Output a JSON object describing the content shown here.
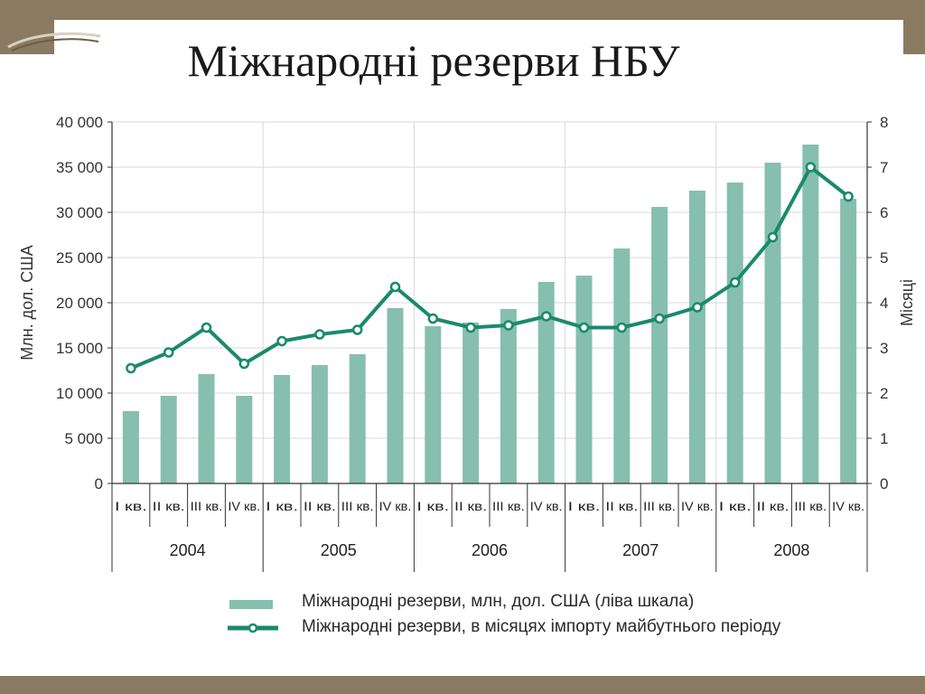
{
  "slide": {
    "title": "Міжнародні резерви НБУ"
  },
  "colors": {
    "frame": "#8a7a62",
    "bar": "#86bfae",
    "line": "#1a8a6a",
    "marker_fill": "#ffffff",
    "grid": "#d8d8d8",
    "axis": "#333333"
  },
  "chart_data": {
    "type": "bar",
    "combined_with": "line",
    "categories": [
      "I кв.",
      "II кв.",
      "III кв.",
      "IV кв.",
      "I кв.",
      "II кв.",
      "III кв.",
      "IV кв.",
      "I кв.",
      "II кв.",
      "III кв.",
      "IV кв.",
      "I кв.",
      "II кв.",
      "III кв.",
      "IV кв.",
      "I кв.",
      "II кв.",
      "III кв.",
      "IV кв."
    ],
    "groups": [
      {
        "label": "2004",
        "span": 4
      },
      {
        "label": "2005",
        "span": 4
      },
      {
        "label": "2006",
        "span": 4
      },
      {
        "label": "2007",
        "span": 4
      },
      {
        "label": "2008",
        "span": 4
      }
    ],
    "series": [
      {
        "name": "Міжнародні резерви, млн, дол. США (ліва шкала)",
        "type": "bar",
        "axis": "left",
        "values": [
          8000,
          9700,
          12100,
          9700,
          12000,
          13100,
          14300,
          19400,
          17400,
          17800,
          19300,
          22300,
          23000,
          26000,
          30600,
          32400,
          33300,
          35500,
          37500,
          31500
        ]
      },
      {
        "name": "Міжнародні резерви, в місяцях імпорту майбутнього періоду",
        "type": "line",
        "axis": "right",
        "values": [
          2.55,
          2.9,
          3.45,
          2.65,
          3.15,
          3.3,
          3.4,
          4.35,
          3.65,
          3.45,
          3.5,
          3.7,
          3.45,
          3.45,
          3.65,
          3.9,
          4.45,
          5.45,
          7.0,
          6.35
        ]
      }
    ],
    "left_axis": {
      "label": "Млн. дол. США",
      "min": 0,
      "max": 40000,
      "ticks": [
        "0",
        "5 000",
        "10 000",
        "15 000",
        "20 000",
        "25 000",
        "30 000",
        "35 000",
        "40 000"
      ]
    },
    "right_axis": {
      "label": "Місяці",
      "min": 0,
      "max": 8,
      "ticks": [
        "0",
        "1",
        "2",
        "3",
        "4",
        "5",
        "6",
        "7",
        "8"
      ]
    },
    "grid": true,
    "legend_position": "bottom"
  }
}
